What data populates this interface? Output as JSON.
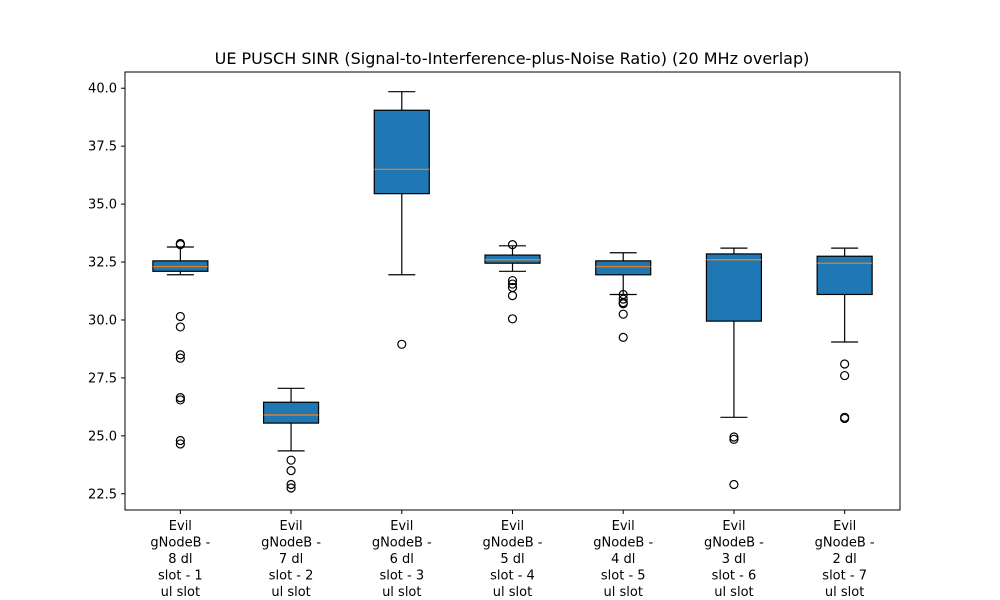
{
  "chart_data": {
    "type": "box",
    "title": "UE PUSCH SINR (Signal-to-Interference-plus-Noise Ratio) (20 MHz overlap)",
    "xlabel": "",
    "ylabel": "",
    "ylim": [
      21.8,
      40.7
    ],
    "yticks": [
      "22.5",
      "25.0",
      "27.5",
      "30.0",
      "32.5",
      "35.0",
      "37.5",
      "40.0"
    ],
    "grid": false,
    "legend": "none",
    "colors": {
      "box_fill": "#1f77b4",
      "median": "#ff7f0e",
      "line": "#000000"
    },
    "categories": [
      {
        "lines": [
          "Evil",
          "gNodeB -",
          "8 dl",
          "slot - 1",
          "ul slot"
        ],
        "whisker_low": 31.95,
        "q1": 32.1,
        "median": 32.3,
        "q3": 32.55,
        "whisker_high": 33.15,
        "fliers": [
          33.3,
          33.25,
          30.15,
          29.7,
          28.5,
          28.35,
          26.65,
          26.55,
          24.8,
          24.65
        ]
      },
      {
        "lines": [
          "Evil",
          "gNodeB -",
          "7 dl",
          "slot - 2",
          "ul slot"
        ],
        "whisker_low": 24.35,
        "q1": 25.55,
        "median": 25.9,
        "q3": 26.45,
        "whisker_high": 27.05,
        "fliers": [
          23.95,
          23.5,
          22.9,
          22.75
        ]
      },
      {
        "lines": [
          "Evil",
          "gNodeB -",
          "6 dl",
          "slot - 3",
          "ul slot"
        ],
        "whisker_low": 31.95,
        "q1": 35.45,
        "median": 36.5,
        "q3": 39.05,
        "whisker_high": 39.85,
        "fliers": [
          28.95
        ]
      },
      {
        "lines": [
          "Evil",
          "gNodeB -",
          "5 dl",
          "slot - 4",
          "ul slot"
        ],
        "whisker_low": 32.1,
        "q1": 32.45,
        "median": 32.6,
        "q3": 32.8,
        "whisker_high": 33.2,
        "fliers": [
          33.25,
          31.7,
          31.55,
          31.4,
          31.05,
          30.05
        ]
      },
      {
        "lines": [
          "Evil",
          "gNodeB -",
          "4 dl",
          "slot - 5",
          "ul slot"
        ],
        "whisker_low": 31.1,
        "q1": 31.95,
        "median": 32.3,
        "q3": 32.55,
        "whisker_high": 32.9,
        "fliers": [
          31.1,
          30.9,
          30.75,
          30.7,
          30.25,
          29.25
        ]
      },
      {
        "lines": [
          "Evil",
          "gNodeB -",
          "3 dl",
          "slot - 6",
          "ul slot"
        ],
        "whisker_low": 25.8,
        "q1": 29.95,
        "median": 32.6,
        "q3": 32.85,
        "whisker_high": 33.1,
        "fliers": [
          24.95,
          24.85,
          22.9
        ]
      },
      {
        "lines": [
          "Evil",
          "gNodeB -",
          "2 dl",
          "slot - 7",
          "ul slot"
        ],
        "whisker_low": 29.05,
        "q1": 31.1,
        "median": 32.45,
        "q3": 32.75,
        "whisker_high": 33.1,
        "fliers": [
          28.1,
          27.6,
          25.8,
          25.75
        ]
      }
    ]
  }
}
